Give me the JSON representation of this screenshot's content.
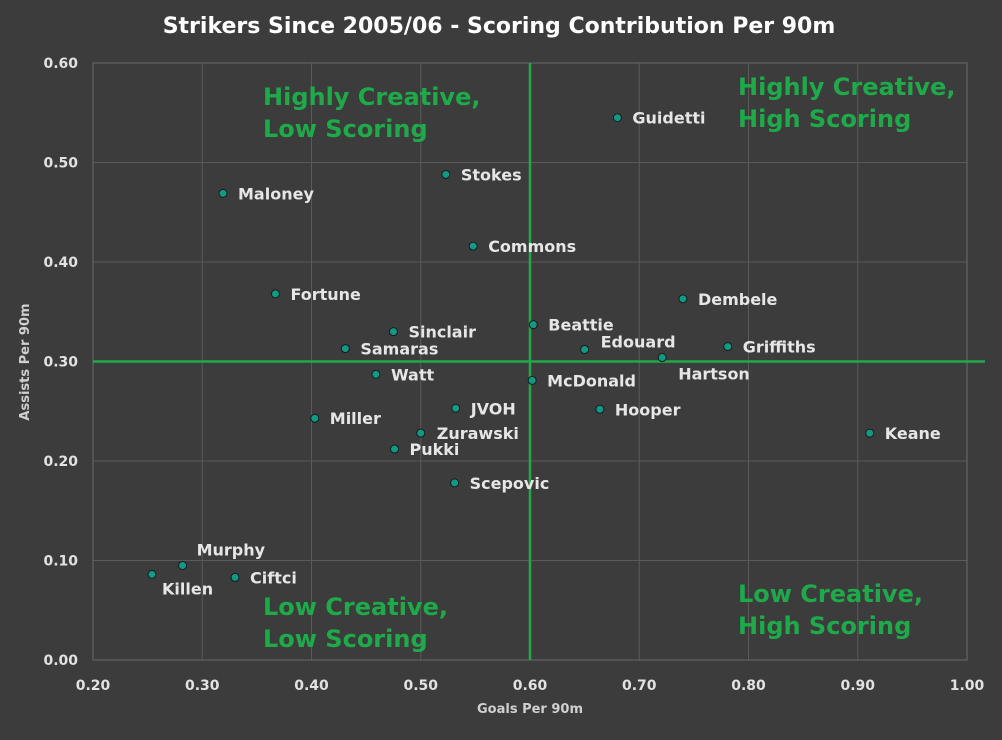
{
  "chart_data": {
    "type": "scatter",
    "title": "Strikers Since 2005/06 - Scoring Contribution Per 90m",
    "xlabel": "Goals Per 90m",
    "ylabel": "Assists Per 90m",
    "xlim": [
      0.2,
      1.0
    ],
    "ylim": [
      0.0,
      0.6
    ],
    "xticks": [
      "0.20",
      "0.30",
      "0.40",
      "0.50",
      "0.60",
      "0.70",
      "0.80",
      "0.90",
      "1.00"
    ],
    "yticks": [
      "0.00",
      "0.10",
      "0.20",
      "0.30",
      "0.40",
      "0.50",
      "0.60"
    ],
    "grid": true,
    "reference_lines": {
      "x": 0.6,
      "y": 0.3
    },
    "quadrant_labels": [
      {
        "line1": "Highly Creative,",
        "line2": "Low Scoring",
        "position": "top-left"
      },
      {
        "line1": "Highly Creative,",
        "line2": "High Scoring",
        "position": "top-right"
      },
      {
        "line1": "Low Creative,",
        "line2": "Low Scoring",
        "position": "bottom-left"
      },
      {
        "line1": "Low Creative,",
        "line2": "High Scoring",
        "position": "bottom-right"
      }
    ],
    "points": [
      {
        "name": "Guidetti",
        "x": 0.68,
        "y": 0.545
      },
      {
        "name": "Stokes",
        "x": 0.523,
        "y": 0.488
      },
      {
        "name": "Maloney",
        "x": 0.319,
        "y": 0.469
      },
      {
        "name": "Commons",
        "x": 0.548,
        "y": 0.416
      },
      {
        "name": "Fortune",
        "x": 0.367,
        "y": 0.368
      },
      {
        "name": "Dembele",
        "x": 0.74,
        "y": 0.363
      },
      {
        "name": "Beattie",
        "x": 0.603,
        "y": 0.337
      },
      {
        "name": "Sinclair",
        "x": 0.475,
        "y": 0.33
      },
      {
        "name": "Samaras",
        "x": 0.431,
        "y": 0.313
      },
      {
        "name": "Edouard",
        "x": 0.65,
        "y": 0.312
      },
      {
        "name": "Griffiths",
        "x": 0.781,
        "y": 0.315
      },
      {
        "name": "Hartson",
        "x": 0.721,
        "y": 0.304
      },
      {
        "name": "Watt",
        "x": 0.459,
        "y": 0.287
      },
      {
        "name": "McDonald",
        "x": 0.602,
        "y": 0.281
      },
      {
        "name": "JVOH",
        "x": 0.532,
        "y": 0.253
      },
      {
        "name": "Hooper",
        "x": 0.664,
        "y": 0.252
      },
      {
        "name": "Miller",
        "x": 0.403,
        "y": 0.243
      },
      {
        "name": "Zurawski",
        "x": 0.5,
        "y": 0.228
      },
      {
        "name": "Keane",
        "x": 0.911,
        "y": 0.228
      },
      {
        "name": "Pukki",
        "x": 0.476,
        "y": 0.212
      },
      {
        "name": "Scepovic",
        "x": 0.531,
        "y": 0.178
      },
      {
        "name": "Murphy",
        "x": 0.282,
        "y": 0.095
      },
      {
        "name": "Killen",
        "x": 0.254,
        "y": 0.086
      },
      {
        "name": "Ciftci",
        "x": 0.33,
        "y": 0.083
      }
    ]
  }
}
